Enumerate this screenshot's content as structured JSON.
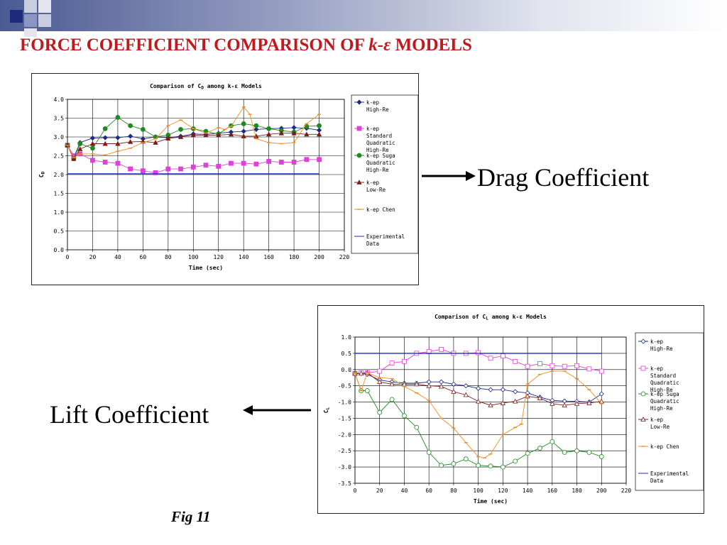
{
  "slide": {
    "title_prefix": "FORCE COEFFICIENT COMPARISON OF ",
    "title_k": "k",
    "title_dash": "-",
    "title_eps": "ε",
    "title_suffix": " MODELS",
    "drag_label": "Drag Coefficient",
    "lift_label": "Lift Coefficient",
    "fig_caption": "Fig 11",
    "colors": {
      "title": "#c0191e",
      "accent": "#1b2a7a"
    }
  },
  "chart_data": [
    {
      "type": "line",
      "id": "drag",
      "title": "Comparison of C",
      "title_sub": "D",
      "title_suffix": " among k-ε Models",
      "ylabel": "C",
      "ylabel_sub": "D",
      "xlabel": "Time (sec)",
      "xlim": [
        0,
        220
      ],
      "ylim": [
        0,
        4
      ],
      "xticks": [
        0,
        20,
        40,
        60,
        80,
        100,
        120,
        140,
        160,
        180,
        200,
        220
      ],
      "yticks": [
        "0.0",
        "0.5",
        "1.0",
        "1.5",
        "2.0",
        "2.5",
        "3.0",
        "3.5",
        "4.0"
      ],
      "grid": true,
      "legend_position": "right",
      "series": [
        {
          "name": "k-ep High-Re",
          "color": "#1c2a80",
          "marker": "diamond",
          "filled": true,
          "x": [
            0,
            5,
            10,
            20,
            30,
            40,
            50,
            60,
            70,
            80,
            90,
            100,
            110,
            120,
            130,
            140,
            150,
            160,
            170,
            180,
            190,
            200
          ],
          "y": [
            2.78,
            2.45,
            2.85,
            2.97,
            2.98,
            2.98,
            3.02,
            2.95,
            3.0,
            2.98,
            3.02,
            3.08,
            3.07,
            3.1,
            3.13,
            3.15,
            3.2,
            3.22,
            3.23,
            3.25,
            3.23,
            3.18
          ]
        },
        {
          "name": "k-ep Standard Quadratic High-Re",
          "color": "#e040d8",
          "marker": "square",
          "filled": true,
          "x": [
            0,
            5,
            10,
            20,
            30,
            40,
            50,
            60,
            70,
            80,
            90,
            100,
            110,
            120,
            130,
            140,
            150,
            160,
            170,
            180,
            190,
            200
          ],
          "y": [
            2.78,
            2.5,
            2.55,
            2.38,
            2.33,
            2.3,
            2.15,
            2.1,
            2.05,
            2.15,
            2.15,
            2.2,
            2.25,
            2.22,
            2.3,
            2.3,
            2.28,
            2.35,
            2.33,
            2.33,
            2.4,
            2.4
          ]
        },
        {
          "name": "k-ep Suga Quadratic High-Re",
          "color": "#1f8a1f",
          "marker": "circle",
          "filled": true,
          "x": [
            0,
            5,
            10,
            20,
            30,
            40,
            50,
            60,
            70,
            80,
            90,
            100,
            110,
            120,
            130,
            140,
            150,
            160,
            170,
            180,
            190,
            200
          ],
          "y": [
            2.78,
            2.42,
            2.82,
            2.7,
            3.22,
            3.52,
            3.3,
            3.2,
            3.0,
            3.05,
            3.2,
            3.22,
            3.15,
            3.08,
            3.3,
            3.35,
            3.3,
            3.22,
            3.17,
            3.13,
            3.28,
            3.3
          ]
        },
        {
          "name": "k-ep Low-Re",
          "color": "#7a1c1c",
          "marker": "triangle",
          "filled": true,
          "x": [
            0,
            5,
            10,
            20,
            30,
            40,
            50,
            60,
            70,
            80,
            90,
            100,
            110,
            120,
            130,
            140,
            150,
            160,
            170,
            180,
            190,
            200
          ],
          "y": [
            2.78,
            2.42,
            2.68,
            2.82,
            2.82,
            2.82,
            2.87,
            2.88,
            2.85,
            2.96,
            3.0,
            3.05,
            3.05,
            3.05,
            3.07,
            3.02,
            3.02,
            3.07,
            3.1,
            3.1,
            3.07,
            3.07
          ]
        },
        {
          "name": "k-ep Chen",
          "color": "#f08c20",
          "marker": "dash",
          "filled": true,
          "x": [
            0,
            5,
            10,
            20,
            30,
            40,
            50,
            60,
            70,
            80,
            90,
            100,
            110,
            120,
            125,
            130,
            140,
            145,
            150,
            160,
            170,
            180,
            190,
            200
          ],
          "y": [
            2.78,
            2.45,
            2.55,
            2.55,
            2.52,
            2.62,
            2.7,
            2.85,
            2.95,
            3.3,
            3.45,
            3.22,
            3.1,
            3.25,
            3.2,
            3.28,
            3.8,
            3.6,
            2.95,
            2.85,
            2.82,
            2.85,
            3.35,
            3.6
          ]
        },
        {
          "name": "Experimental Data",
          "color": "#1c2acc",
          "marker": "none",
          "filled": true,
          "x": [
            0,
            200
          ],
          "y": [
            2.02,
            2.02
          ]
        }
      ]
    },
    {
      "type": "line",
      "id": "lift",
      "title": "Comparison of C",
      "title_sub": "L",
      "title_suffix": " among k-ε Models",
      "ylabel": "C",
      "ylabel_sub": "L",
      "xlabel": "Time (sec)",
      "xlim": [
        0,
        220
      ],
      "ylim": [
        -3.5,
        1
      ],
      "xticks": [
        0,
        20,
        40,
        60,
        80,
        100,
        120,
        140,
        160,
        180,
        200,
        220
      ],
      "yticks": [
        "-3.5",
        "-3.0",
        "-2.5",
        "-2.0",
        "-1.5",
        "-1.0",
        "-0.5",
        "0.0",
        "0.5",
        "1.0"
      ],
      "grid": true,
      "legend_position": "right",
      "series": [
        {
          "name": "k-ep High-Re",
          "color": "#1c2a80",
          "marker": "diamond",
          "filled": false,
          "x": [
            0,
            5,
            10,
            20,
            30,
            40,
            50,
            60,
            70,
            80,
            90,
            100,
            110,
            120,
            130,
            140,
            150,
            160,
            170,
            180,
            190,
            200
          ],
          "y": [
            -0.12,
            -0.12,
            -0.15,
            -0.32,
            -0.38,
            -0.42,
            -0.42,
            -0.38,
            -0.38,
            -0.45,
            -0.5,
            -0.58,
            -0.62,
            -0.62,
            -0.68,
            -0.72,
            -0.85,
            -0.95,
            -0.97,
            -0.98,
            -1.0,
            -0.75
          ]
        },
        {
          "name": "k-ep Standard Quadratic High-Re",
          "color": "#e040d8",
          "marker": "square",
          "filled": false,
          "x": [
            0,
            5,
            10,
            20,
            30,
            40,
            50,
            60,
            70,
            80,
            90,
            100,
            110,
            120,
            130,
            140,
            150,
            160,
            170,
            180,
            190,
            200
          ],
          "y": [
            -0.12,
            -0.1,
            -0.1,
            -0.05,
            0.2,
            0.25,
            0.5,
            0.55,
            0.62,
            0.5,
            0.5,
            0.52,
            0.35,
            0.42,
            0.25,
            0.1,
            0.18,
            0.12,
            0.1,
            0.12,
            0.02,
            -0.05
          ]
        },
        {
          "name": "k-ep Suga Quadratic High-Re",
          "color": "#1f8a1f",
          "marker": "circle",
          "filled": false,
          "x": [
            0,
            5,
            10,
            20,
            30,
            40,
            50,
            60,
            70,
            80,
            90,
            100,
            110,
            120,
            130,
            140,
            150,
            160,
            170,
            180,
            190,
            200
          ],
          "y": [
            -0.12,
            -0.65,
            -0.65,
            -1.32,
            -0.92,
            -1.42,
            -1.78,
            -2.55,
            -2.95,
            -2.9,
            -2.75,
            -2.95,
            -2.97,
            -3.0,
            -2.82,
            -2.58,
            -2.42,
            -2.22,
            -2.55,
            -2.5,
            -2.55,
            -2.68
          ]
        },
        {
          "name": "k-ep Low-Re",
          "color": "#7a1c1c",
          "marker": "triangle",
          "filled": false,
          "x": [
            0,
            5,
            10,
            20,
            30,
            40,
            50,
            60,
            70,
            80,
            90,
            100,
            110,
            120,
            130,
            140,
            150,
            160,
            170,
            180,
            190,
            200
          ],
          "y": [
            -0.12,
            -0.12,
            -0.1,
            -0.38,
            -0.45,
            -0.45,
            -0.45,
            -0.5,
            -0.52,
            -0.68,
            -0.78,
            -0.98,
            -1.1,
            -1.03,
            -0.98,
            -0.82,
            -0.88,
            -1.05,
            -1.1,
            -1.05,
            -1.03,
            -0.98
          ]
        },
        {
          "name": "k-ep Chen",
          "color": "#f08c20",
          "marker": "dash",
          "filled": true,
          "x": [
            0,
            5,
            10,
            20,
            30,
            40,
            50,
            60,
            70,
            80,
            90,
            100,
            105,
            110,
            120,
            130,
            135,
            140,
            150,
            160,
            170,
            180,
            190,
            200
          ],
          "y": [
            -0.12,
            -0.65,
            -0.1,
            -0.25,
            -0.28,
            -0.52,
            -0.72,
            -0.95,
            -1.5,
            -1.8,
            -2.25,
            -2.68,
            -2.72,
            -2.6,
            -2.0,
            -1.78,
            -1.68,
            -0.45,
            -0.15,
            -0.05,
            -0.05,
            -0.28,
            -0.62,
            -1.05
          ]
        },
        {
          "name": "Experimental Data",
          "color": "#1c2acc",
          "marker": "none",
          "filled": true,
          "x": [
            0,
            200
          ],
          "y": [
            0.5,
            0.5
          ]
        }
      ]
    }
  ]
}
